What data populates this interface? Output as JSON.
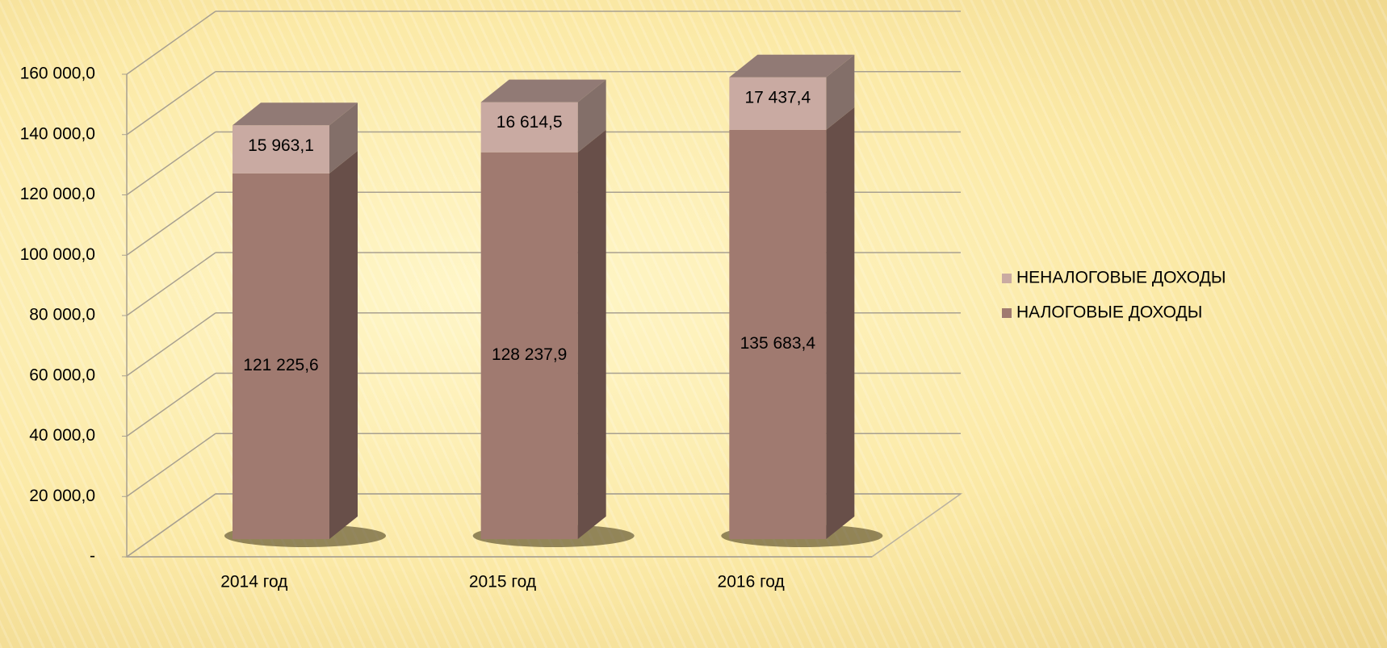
{
  "chart_data": {
    "type": "bar3d_stacked",
    "categories": [
      "2014 год",
      "2015 год",
      "2016 год"
    ],
    "series": [
      {
        "name": "НАЛОГОВЫЕ ДОХОДЫ",
        "color": "#a07a70",
        "values": [
          121225.6,
          128237.9,
          135683.4
        ],
        "value_labels": [
          "121 225,6",
          "128 237,9",
          "135 683,4"
        ]
      },
      {
        "name": "НЕНАЛОГОВЫЕ ДОХОДЫ",
        "color": "#c9aaa2",
        "values": [
          15963.1,
          16614.5,
          17437.4
        ],
        "value_labels": [
          "15 963,1",
          "16 614,5",
          "17 437,4"
        ]
      }
    ],
    "ylim": [
      0,
      160000
    ],
    "yticks": [
      {
        "value": 0,
        "label": "-"
      },
      {
        "value": 20000,
        "label": "20 000,0"
      },
      {
        "value": 40000,
        "label": "40 000,0"
      },
      {
        "value": 60000,
        "label": "60 000,0"
      },
      {
        "value": 80000,
        "label": "80 000,0"
      },
      {
        "value": 100000,
        "label": "100 000,0"
      },
      {
        "value": 120000,
        "label": "120 000,0"
      },
      {
        "value": 140000,
        "label": "140 000,0"
      },
      {
        "value": 160000,
        "label": "160 000,0"
      }
    ],
    "grid": true,
    "legend": "right"
  }
}
